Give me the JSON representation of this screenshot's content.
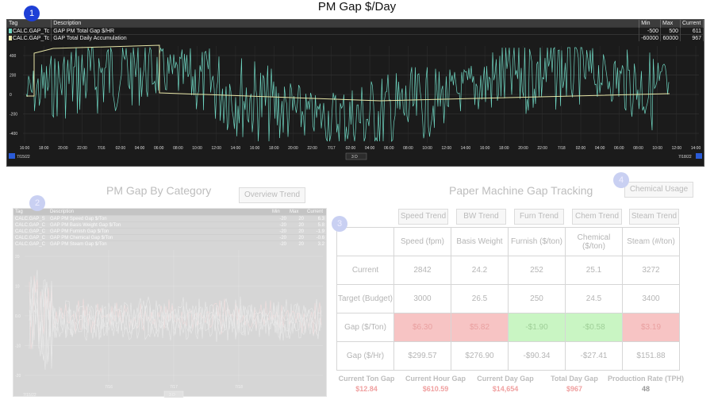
{
  "page_title": "PM Gap $/Day",
  "badges": [
    "1",
    "2",
    "3",
    "4"
  ],
  "trend1": {
    "headers": {
      "tag": "Tag",
      "description": "Description",
      "min": "Min",
      "max": "Max",
      "current": "Current"
    },
    "rows": [
      {
        "tag": "CALC.GAP_Tc",
        "description": "GAP PM Total Gap $/HR",
        "min": "-500",
        "max": "500",
        "current": "611",
        "color": "#6fd6c2"
      },
      {
        "tag": "CALC.GAP_Tc",
        "description": "GAP Total Daily Accumulation",
        "min": "-60000",
        "max": "60000",
        "current": "967",
        "color": "#e8e6a8"
      }
    ],
    "y_ticks": [
      "400",
      "200",
      "0",
      "-200",
      "-400"
    ],
    "x_ticks": [
      "16:00",
      "18:00",
      "20:00",
      "22:00",
      "7/16",
      "02:00",
      "04:00",
      "06:00",
      "08:00",
      "10:00",
      "12:00",
      "14:00",
      "16:00",
      "18:00",
      "20:00",
      "22:00",
      "7/17",
      "02:00",
      "04:00",
      "06:00",
      "08:00",
      "10:00",
      "12:00",
      "14:00",
      "16:00",
      "18:00",
      "20:00",
      "22:00",
      "7/18",
      "02:00",
      "04:00",
      "06:00",
      "08:00",
      "10:00",
      "12:00",
      "14:00"
    ],
    "start_date": "7/15/22",
    "end_date": "7/18/22",
    "range": "3 D"
  },
  "category": {
    "title": "PM Gap By Category",
    "overview_btn": "Overview Trend",
    "headers": {
      "tag": "Tag",
      "description": "Description",
      "min": "Min",
      "max": "Max",
      "current": "Current"
    },
    "rows": [
      {
        "tag": "CALC.GAP_S",
        "description": "GAP PM Speed Gap $/Ton",
        "min": "-20",
        "max": "20",
        "current": "6.3",
        "color": "#e9e9e9"
      },
      {
        "tag": "CALC.GAP_C",
        "description": "GAP PM Basis Weight Gap $/Ton",
        "min": "-20",
        "max": "20",
        "current": "5.8",
        "color": "#f2dede"
      },
      {
        "tag": "CALC.GAP_C",
        "description": "GAP PM Furnish Gap $/Ton",
        "min": "-20",
        "max": "20",
        "current": "-1.9",
        "color": "#e9e9e9"
      },
      {
        "tag": "CALC.GAP_C",
        "description": "GAP PM Chemical Gap $/Ton",
        "min": "-20",
        "max": "20",
        "current": "-0.6",
        "color": "#e9e9e9"
      },
      {
        "tag": "CALC.GAP_C",
        "description": "GAP PM Steam Gap $/Ton",
        "min": "-20",
        "max": "20",
        "current": "3.2",
        "color": "#e9e9e9"
      }
    ],
    "y_ticks": [
      "20",
      "10",
      "0.0",
      "-10",
      "-20"
    ],
    "x_ticks": [
      "7/16",
      "7/17",
      "7/18"
    ],
    "start_date": "7/15/22",
    "range": "3 D"
  },
  "tracking": {
    "title": "Paper Machine Gap Tracking",
    "chemical_btn": "Chemical Usage",
    "trend_buttons": [
      "Speed Trend",
      "BW Trend",
      "Furn Trend",
      "Chem Trend",
      "Steam Trend"
    ],
    "columns": [
      "Speed (fpm)",
      "Basis Weight",
      "Furnish ($/ton)",
      "Chemical ($/ton)",
      "Steam (#/ton)"
    ],
    "rows": [
      {
        "label": "Current",
        "cells": [
          "2842",
          "24.2",
          "252",
          "25.1",
          "3272"
        ],
        "states": [
          "",
          "",
          "",
          "",
          ""
        ]
      },
      {
        "label": "Target (Budget)",
        "cells": [
          "3000",
          "26.5",
          "250",
          "24.5",
          "3400"
        ],
        "states": [
          "",
          "",
          "",
          "",
          ""
        ]
      },
      {
        "label": "Gap ($/Ton)",
        "cells": [
          "$6.30",
          "$5.82",
          "-$1.90",
          "-$0.58",
          "$3.19"
        ],
        "states": [
          "red",
          "red",
          "green",
          "green",
          "red"
        ]
      },
      {
        "label": "Gap ($/Hr)",
        "cells": [
          "$299.57",
          "$276.90",
          "-$90.34",
          "-$27.41",
          "$151.88"
        ],
        "states": [
          "",
          "",
          "",
          "",
          ""
        ]
      }
    ],
    "summary": [
      {
        "label": "Current Ton Gap",
        "value": "$12.84",
        "style": "red"
      },
      {
        "label": "Current Hour Gap",
        "value": "$610.59",
        "style": "red"
      },
      {
        "label": "Current Day Gap",
        "value": "$14,654",
        "style": "red"
      },
      {
        "label": "Total Day Gap",
        "value": "$967",
        "style": "red"
      },
      {
        "label": "Production Rate (TPH)",
        "value": "48",
        "style": "dark"
      }
    ]
  },
  "colors": {
    "trend_bg": "#1b1b1b",
    "series_teal": "#6fd6c2",
    "series_yellow": "#e8e6a8",
    "gap_red": "#f7c4c4",
    "gap_green": "#c9f5c3"
  }
}
